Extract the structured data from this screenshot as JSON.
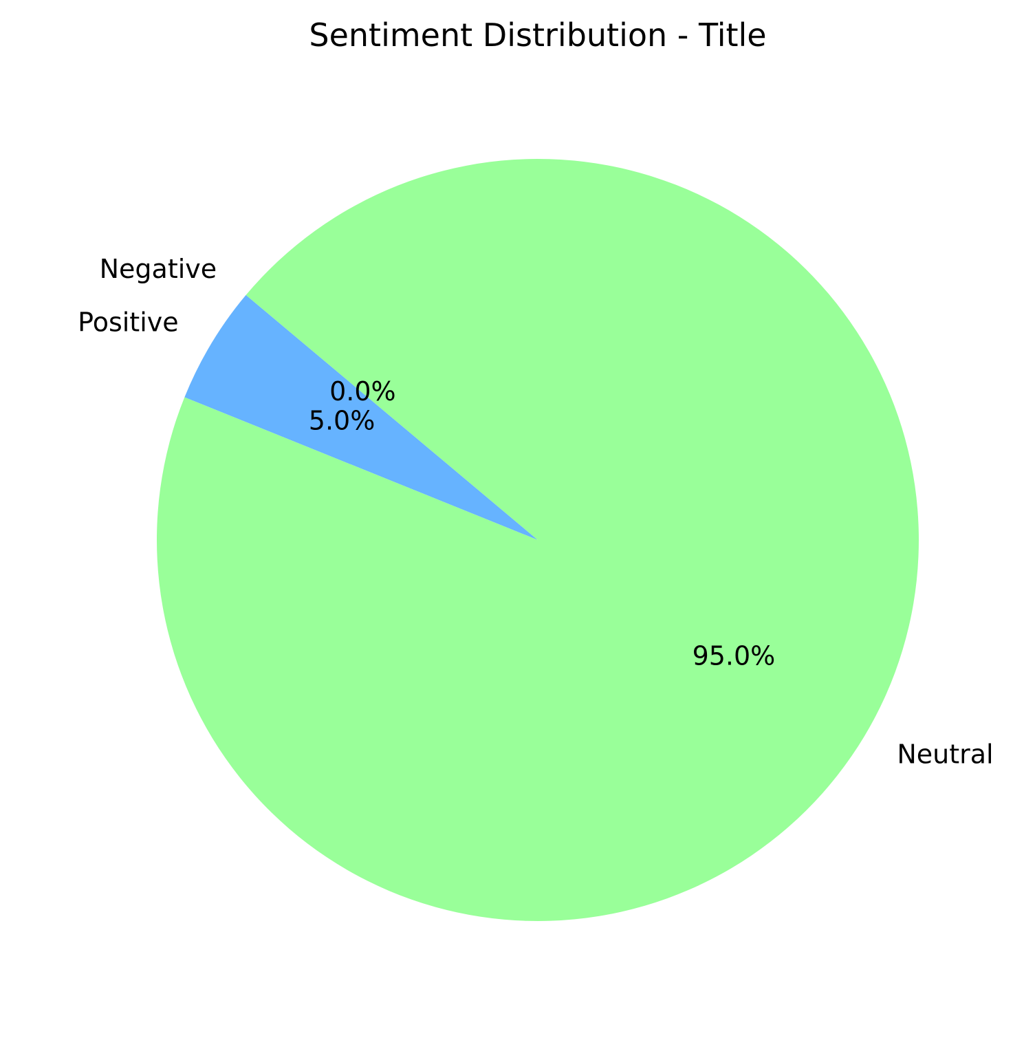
{
  "chart_data": {
    "type": "pie",
    "title": "Sentiment Distribution - Title",
    "categories": [
      "Positive",
      "Neutral",
      "Negative"
    ],
    "values": [
      5.0,
      95.0,
      0.0
    ],
    "percent_labels": [
      "5.0%",
      "95.0%",
      "0.0%"
    ],
    "colors": [
      "#66b3ff",
      "#99ff99",
      "#ff9999"
    ],
    "start_angle_deg": 140,
    "direction": "counterclockwise",
    "legend": "none"
  }
}
